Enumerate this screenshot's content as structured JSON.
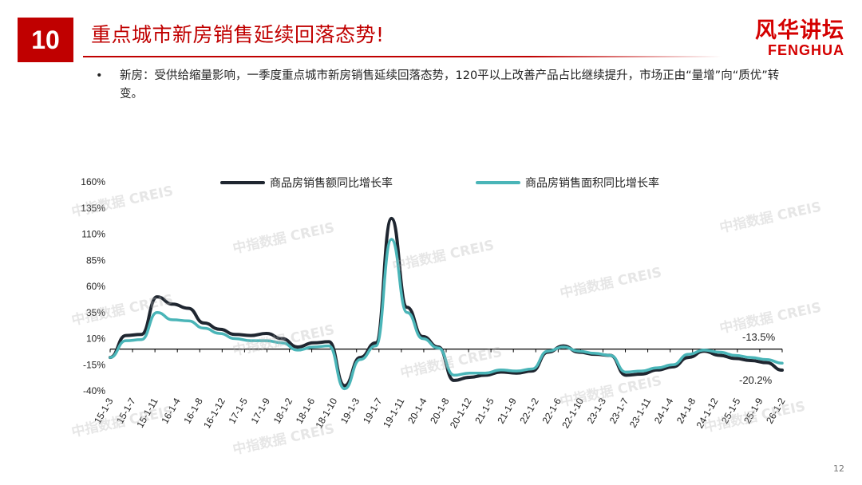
{
  "header": {
    "slide_number": "10",
    "title": "重点城市新房销售延续回落态势!",
    "brand_cn": "风华讲坛",
    "brand_en": "FENGHUA"
  },
  "bullet": {
    "symbol": "•",
    "text": "新房：受供给缩量影响，一季度重点城市新房销售延续回落态势，120平以上改善产品占比继续提升，市场正由“量增”向“质优”转变。"
  },
  "watermark_text": "中指数据 CREIS",
  "page_number": "12",
  "colors": {
    "title_red": "#c00000",
    "amount_series": "#1f2630",
    "area_series": "#4ab5b8"
  },
  "chart_data": {
    "type": "line",
    "x_labels": [
      "15-1-3",
      "15-1-7",
      "15-1-11",
      "16-1-4",
      "16-1-8",
      "16-1-12",
      "17-1-5",
      "17-1-9",
      "18-1-2",
      "18-1-6",
      "18-1-10",
      "19-1-3",
      "19-1-7",
      "19-1-11",
      "20-1-4",
      "20-1-8",
      "20-1-12",
      "21-1-5",
      "21-1-9",
      "22-1-2",
      "22-1-6",
      "22-1-10",
      "23-1-3",
      "23-1-7",
      "23-1-11",
      "24-1-4",
      "24-1-8",
      "24-1-12",
      "25-1-5",
      "25-1-9",
      "26-1-2"
    ],
    "y_ticks": [
      "160%",
      "135%",
      "110%",
      "85%",
      "60%",
      "35%",
      "10%",
      "-15%",
      "-40%"
    ],
    "y_range": [
      -40,
      160
    ],
    "series": [
      {
        "name": "商品房销售额同比增长率",
        "values": [
          -8,
          13,
          14,
          50,
          43,
          39,
          25,
          19,
          14,
          13,
          15,
          10,
          2,
          6,
          7,
          -35,
          -8,
          6,
          125,
          40,
          12,
          2,
          -30,
          -27,
          -25,
          -22,
          -23,
          -21,
          -3,
          3,
          -3,
          -5,
          -6,
          -25,
          -24,
          -20,
          -17,
          -8,
          -2,
          -6,
          -9,
          -11,
          -13,
          -20.2
        ]
      },
      {
        "name": "商品房销售面积同比增长率",
        "values": [
          -8,
          8,
          9,
          35,
          28,
          27,
          20,
          15,
          10,
          8,
          8,
          6,
          -1,
          2,
          3,
          -38,
          -10,
          3,
          105,
          35,
          10,
          1,
          -25,
          -23,
          -23,
          -20,
          -21,
          -19,
          -2,
          2,
          -2,
          -4,
          -6,
          -22,
          -21,
          -18,
          -15,
          -5,
          -1,
          -3,
          -6,
          -8,
          -10,
          -13.5
        ]
      }
    ],
    "annotations": [
      "-13.5%",
      "-20.2%"
    ],
    "legend_position": "top"
  }
}
